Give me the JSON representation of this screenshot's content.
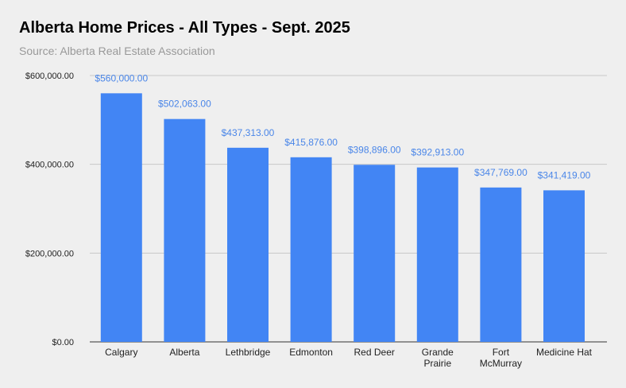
{
  "chart_data": {
    "type": "bar",
    "title": "Alberta Home Prices - All Types - Sept. 2025",
    "subtitle": "Source: Alberta Real Estate Association",
    "categories": [
      "Calgary",
      "Alberta",
      "Lethbridge",
      "Edmonton",
      "Red Deer",
      "Grande Prairie",
      "Fort McMurray",
      "Medicine Hat"
    ],
    "category_label_lines": [
      [
        "Calgary"
      ],
      [
        "Alberta"
      ],
      [
        "Lethbridge"
      ],
      [
        "Edmonton"
      ],
      [
        "Red Deer"
      ],
      [
        "Grande",
        "Prairie"
      ],
      [
        "Fort",
        "McMurray"
      ],
      [
        "Medicine Hat"
      ]
    ],
    "values": [
      560000,
      502063,
      437313,
      415876,
      398896,
      392913,
      347769,
      341419
    ],
    "data_labels": [
      "$560,000.00",
      "$502,063.00",
      "$437,313.00",
      "$415,876.00",
      "$398,896.00",
      "$392,913.00",
      "$347,769.00",
      "$341,419.00"
    ],
    "y_ticks": [
      0,
      200000,
      400000,
      600000
    ],
    "y_tick_labels": [
      "$0.00",
      "$200,000.00",
      "$400,000.00",
      "$600,000.00"
    ],
    "ylim": [
      0,
      600000
    ],
    "grid": true,
    "legend": "none",
    "bar_color": "#4285f4",
    "label_color": "#4a86e8",
    "xlabel": "",
    "ylabel": ""
  }
}
